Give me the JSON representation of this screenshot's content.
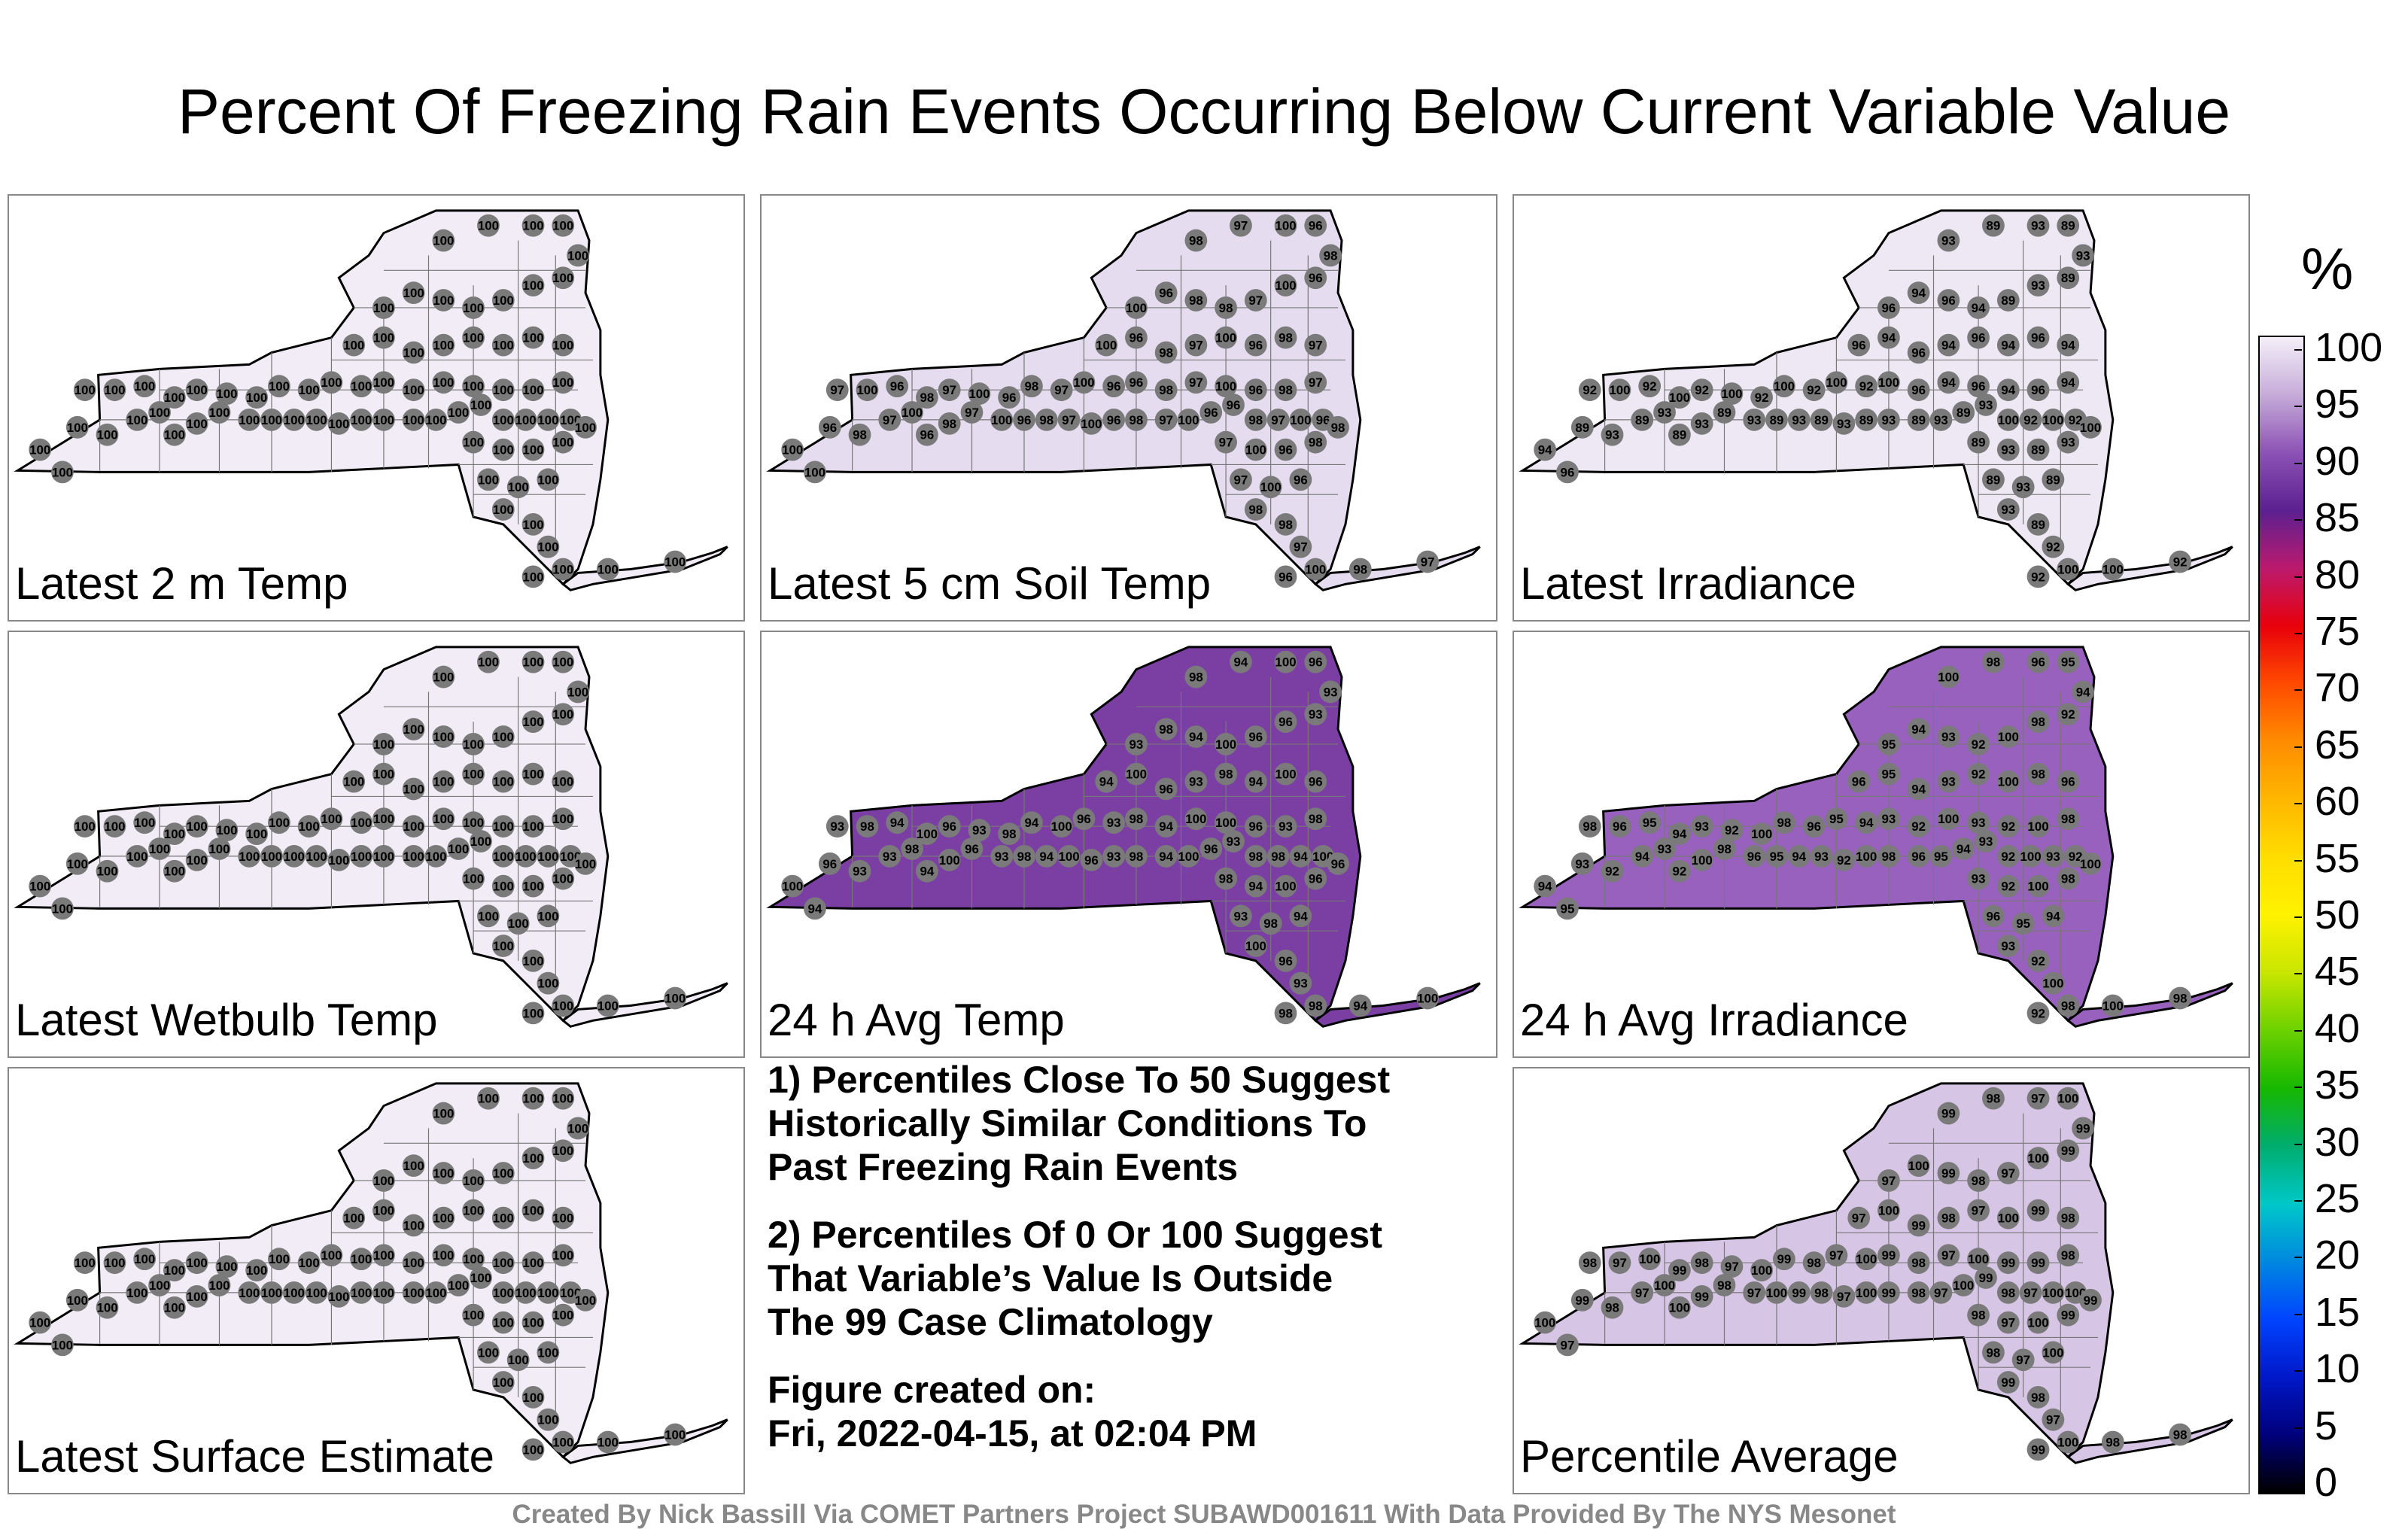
{
  "title": "Percent Of Freezing Rain Events Occurring Below Current Variable Value",
  "panels": [
    {
      "label": "Latest 2 m Temp",
      "fill": "#f1ecf6",
      "values": [
        "100"
      ]
    },
    {
      "label": "Latest 5 cm Soil Temp",
      "fill": "#e6dcef",
      "values": [
        "100",
        "97",
        "98",
        "96"
      ]
    },
    {
      "label": "Latest Irradiance",
      "fill": "#eee8f4",
      "values": [
        "100",
        "94",
        "93",
        "92",
        "96",
        "89"
      ]
    },
    {
      "label": "Latest Wetbulb Temp",
      "fill": "#f1ecf6",
      "values": [
        "100"
      ]
    },
    {
      "label": "24 h Avg Temp",
      "fill": "#7b3fa4",
      "values": [
        "93",
        "94",
        "96",
        "98",
        "100"
      ]
    },
    {
      "label": "24 h Avg Irradiance",
      "fill": "#9761bd",
      "values": [
        "92",
        "93",
        "94",
        "95",
        "96",
        "98",
        "100"
      ]
    },
    {
      "label": "Latest Surface Estimate",
      "fill": "#f1ecf6",
      "values": [
        "100"
      ]
    },
    {
      "label": "Percentile Average",
      "fill": "#d7c5e6",
      "values": [
        "97",
        "98",
        "99",
        "100"
      ]
    }
  ],
  "notes": {
    "note1": "1) Percentiles Close To 50 Suggest\nHistorically Similar Conditions To\nPast Freezing Rain Events",
    "note2": "2) Percentiles Of 0 Or 100 Suggest\nThat Variable’s Value Is Outside\nThe 99 Case Climatology",
    "created_label": "Figure created on:",
    "created_date": "Fri, 2022-04-15, at 02:04 PM"
  },
  "colorbar": {
    "unit": "%",
    "labels": [
      "100",
      "95",
      "90",
      "85",
      "80",
      "75",
      "70",
      "65",
      "60",
      "55",
      "50",
      "45",
      "40",
      "35",
      "30",
      "25",
      "20",
      "15",
      "10",
      "5",
      "0"
    ],
    "colors": [
      "#f4eff8",
      "#c6acd9",
      "#8d52b5",
      "#5c2090",
      "#bb1a6e",
      "#e8000b",
      "#ff4a00",
      "#ff8c00",
      "#ffb600",
      "#ffdd00",
      "#fff200",
      "#c8e600",
      "#6cd100",
      "#16b800",
      "#00ad6e",
      "#00c8c8",
      "#0088e0",
      "#0044ff",
      "#0018c8",
      "#00007a",
      "#000000"
    ]
  },
  "credit": "Created By Nick Bassill Via COMET Partners Project SUBAWD001611 With Data Provided By The NYS Mesonet"
}
